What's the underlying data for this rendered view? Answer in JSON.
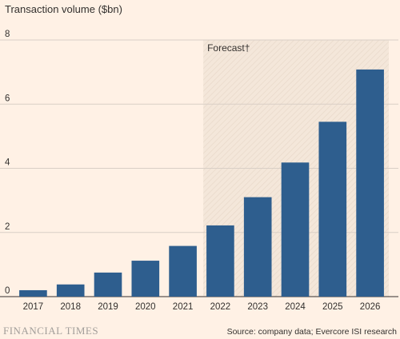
{
  "chart_data": {
    "type": "bar",
    "title": "Transaction volume ($bn)",
    "categories": [
      "2017",
      "2018",
      "2019",
      "2020",
      "2021",
      "2022",
      "2023",
      "2024",
      "2025",
      "2026"
    ],
    "values": [
      0.2,
      0.38,
      0.75,
      1.12,
      1.58,
      2.22,
      3.1,
      4.18,
      5.45,
      7.08
    ],
    "ylim": [
      0,
      8
    ],
    "yticks": [
      0,
      2,
      4,
      6,
      8
    ],
    "grid": true,
    "forecast_start": "2022",
    "forecast_label": "Forecast†",
    "bar_color": "#2e5e8e",
    "forecast_shade_color": "#f2e5d9"
  },
  "footer": {
    "brand": "FINANCIAL TIMES",
    "source": "Source: company data; Evercore ISI research"
  }
}
